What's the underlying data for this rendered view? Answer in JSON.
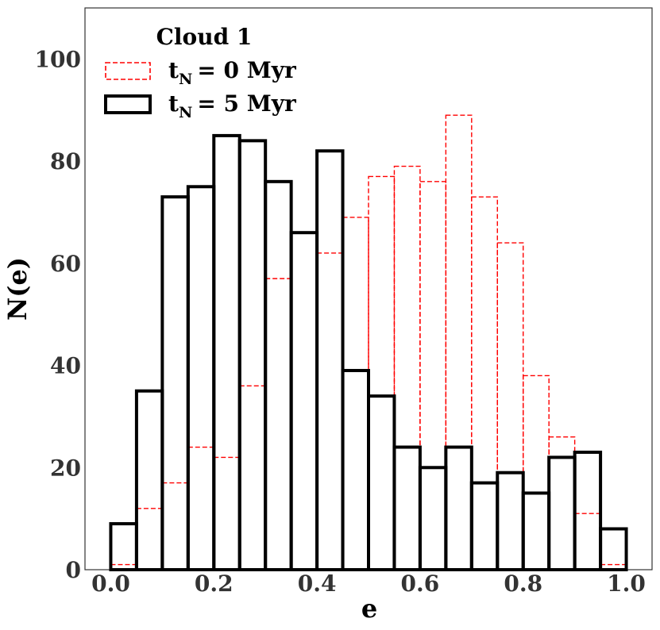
{
  "chart_data": {
    "type": "bar",
    "title": "",
    "xlabel": "e",
    "ylabel": "N(e)",
    "xlim": [
      -0.05,
      1.05
    ],
    "ylim": [
      0,
      110
    ],
    "xticks": [
      0.0,
      0.2,
      0.4,
      0.6,
      0.8,
      1.0
    ],
    "xtick_labels": [
      "0.0",
      "0.2",
      "0.4",
      "0.6",
      "0.8",
      "1.0"
    ],
    "yticks": [
      0,
      20,
      40,
      60,
      80,
      100
    ],
    "ytick_labels": [
      "0",
      "20",
      "40",
      "60",
      "80",
      "100"
    ],
    "grid": false,
    "legend": {
      "title": "Cloud 1",
      "placement": "top-left",
      "entries": [
        {
          "prefix": "t",
          "sub": "N",
          "suffix": "= 0 Myr"
        },
        {
          "prefix": "t",
          "sub": "N",
          "suffix": "= 5 Myr"
        }
      ]
    },
    "bin_edges": [
      0.0,
      0.05,
      0.1,
      0.15,
      0.2,
      0.25,
      0.3,
      0.35,
      0.4,
      0.45,
      0.5,
      0.55,
      0.6,
      0.65,
      0.7,
      0.75,
      0.8,
      0.85,
      0.9,
      0.95,
      1.0
    ],
    "series": [
      {
        "name": "t_N = 0 Myr",
        "color": "#ff0000",
        "style": "dashed",
        "values": [
          1,
          12,
          17,
          24,
          22,
          36,
          57,
          66,
          62,
          69,
          77,
          79,
          76,
          89,
          73,
          64,
          38,
          26,
          11,
          1
        ]
      },
      {
        "name": "t_N = 5 Myr",
        "color": "#000000",
        "style": "solid-thick",
        "values": [
          9,
          35,
          73,
          75,
          85,
          84,
          76,
          66,
          82,
          39,
          34,
          24,
          20,
          24,
          17,
          19,
          15,
          22,
          23,
          8
        ]
      }
    ]
  }
}
